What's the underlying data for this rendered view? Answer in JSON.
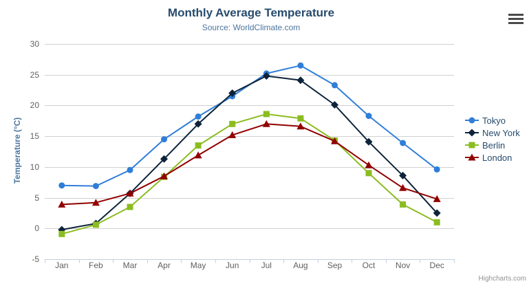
{
  "credits": {
    "label": "Highcharts.com"
  },
  "chart_data": {
    "type": "line",
    "title": "Monthly Average Temperature",
    "subtitle": "Source: WorldClimate.com",
    "xlabel": "",
    "ylabel": "Temperature (°C)",
    "ylim": [
      -5,
      30
    ],
    "ytick_step": 5,
    "grid": true,
    "legend_position": "right",
    "categories": [
      "Jan",
      "Feb",
      "Mar",
      "Apr",
      "May",
      "Jun",
      "Jul",
      "Aug",
      "Sep",
      "Oct",
      "Nov",
      "Dec"
    ],
    "series": [
      {
        "name": "Tokyo",
        "color": "#2f7ed8",
        "marker": "circle",
        "values": [
          7.0,
          6.9,
          9.5,
          14.5,
          18.2,
          21.5,
          25.2,
          26.5,
          23.3,
          18.3,
          13.9,
          9.6
        ]
      },
      {
        "name": "New York",
        "color": "#0d233a",
        "marker": "diamond",
        "values": [
          -0.2,
          0.8,
          5.7,
          11.3,
          17.0,
          22.0,
          24.8,
          24.1,
          20.1,
          14.1,
          8.6,
          2.5
        ]
      },
      {
        "name": "Berlin",
        "color": "#8bbc21",
        "marker": "square",
        "values": [
          -0.9,
          0.6,
          3.5,
          8.4,
          13.5,
          17.0,
          18.6,
          17.9,
          14.3,
          9.0,
          3.9,
          1.0
        ]
      },
      {
        "name": "London",
        "color": "#910000",
        "marker": "triangle",
        "values": [
          3.9,
          4.2,
          5.7,
          8.5,
          11.9,
          15.2,
          17.0,
          16.6,
          14.2,
          10.3,
          6.6,
          4.8
        ]
      }
    ],
    "colors": {
      "grid": "#d0d0d0",
      "axis_line": "#c0d0e0",
      "tick_text": "#606060",
      "title_text": "#274b6d",
      "subtitle_text": "#4d759e",
      "axis_title_text": "#4d759e",
      "legend_text": "#274b6d",
      "credits_text": "#909090",
      "menu_icon": "#4a4a4a"
    }
  }
}
